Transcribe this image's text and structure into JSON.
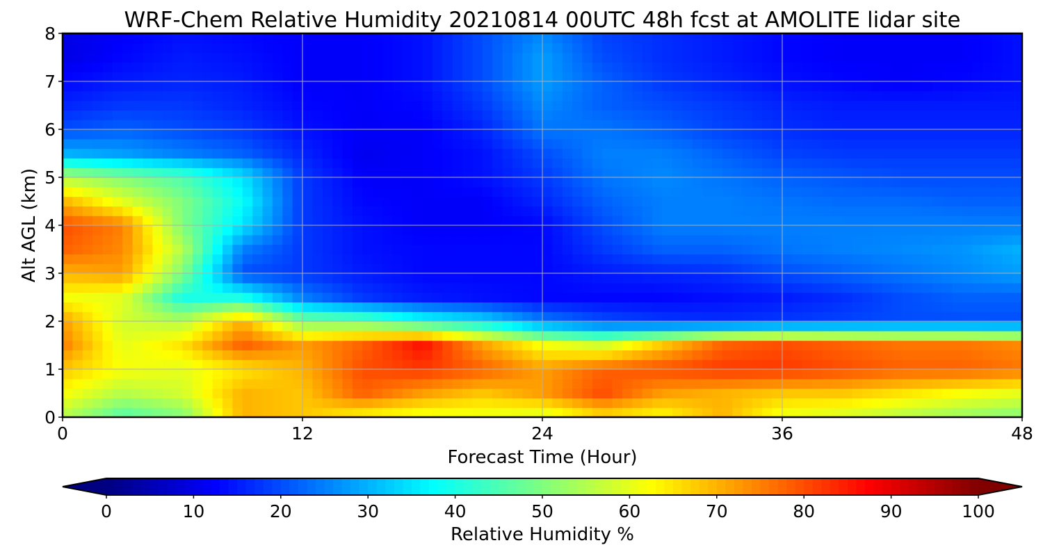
{
  "chart_data": {
    "type": "heatmap",
    "title": "WRF-Chem Relative Humidity 20210814 00UTC 48h fcst at AMOLITE lidar site",
    "xlabel": "Forecast Time (Hour)",
    "ylabel": "Alt AGL (km)",
    "xlim": [
      0,
      48
    ],
    "ylim": [
      0,
      8
    ],
    "x_ticks": [
      0,
      12,
      24,
      36,
      48
    ],
    "y_ticks": [
      0,
      1,
      2,
      3,
      4,
      5,
      6,
      7,
      8
    ],
    "grid": true,
    "x": [
      0,
      3,
      6,
      9,
      12,
      15,
      18,
      21,
      24,
      27,
      30,
      33,
      36,
      39,
      42,
      45,
      48
    ],
    "y": [
      0,
      0.5,
      1,
      1.5,
      2,
      2.5,
      3,
      3.5,
      4,
      4.5,
      5,
      5.5,
      6,
      6.5,
      7,
      7.5,
      8
    ],
    "z": [
      [
        55,
        45,
        50,
        70,
        68,
        62,
        60,
        60,
        58,
        65,
        62,
        70,
        60,
        58,
        55,
        52,
        50
      ],
      [
        62,
        55,
        58,
        70,
        68,
        78,
        72,
        68,
        72,
        80,
        72,
        70,
        68,
        68,
        65,
        62,
        60
      ],
      [
        68,
        62,
        60,
        65,
        70,
        80,
        82,
        78,
        72,
        78,
        80,
        82,
        82,
        80,
        78,
        78,
        76
      ],
      [
        75,
        60,
        65,
        78,
        72,
        78,
        86,
        72,
        62,
        58,
        68,
        78,
        80,
        78,
        76,
        76,
        74
      ],
      [
        72,
        58,
        55,
        70,
        50,
        48,
        40,
        35,
        25,
        20,
        18,
        17,
        18,
        19,
        20,
        20,
        20
      ],
      [
        62,
        60,
        40,
        40,
        25,
        18,
        15,
        14,
        13,
        13,
        13,
        14,
        15,
        17,
        20,
        22,
        22
      ],
      [
        70,
        72,
        50,
        20,
        18,
        15,
        13,
        13,
        13,
        15,
        16,
        17,
        20,
        22,
        24,
        26,
        28
      ],
      [
        78,
        74,
        55,
        25,
        18,
        14,
        13,
        13,
        13,
        18,
        22,
        22,
        24,
        25,
        26,
        27,
        30
      ],
      [
        80,
        75,
        50,
        35,
        18,
        14,
        12,
        12,
        13,
        20,
        25,
        25,
        25,
        25,
        25,
        25,
        25
      ],
      [
        70,
        60,
        50,
        38,
        18,
        13,
        12,
        12,
        16,
        22,
        25,
        25,
        24,
        23,
        23,
        22,
        22
      ],
      [
        55,
        50,
        45,
        35,
        18,
        12,
        12,
        14,
        18,
        24,
        26,
        24,
        22,
        21,
        20,
        20,
        20
      ],
      [
        30,
        28,
        25,
        22,
        16,
        11,
        12,
        14,
        20,
        25,
        25,
        22,
        19,
        18,
        18,
        18,
        18
      ],
      [
        20,
        22,
        20,
        18,
        14,
        12,
        12,
        16,
        24,
        24,
        22,
        19,
        17,
        16,
        16,
        16,
        16
      ],
      [
        16,
        18,
        18,
        16,
        13,
        12,
        13,
        18,
        26,
        22,
        20,
        18,
        16,
        15,
        15,
        15,
        15
      ],
      [
        13,
        15,
        16,
        15,
        12,
        12,
        14,
        20,
        28,
        22,
        18,
        16,
        14,
        13,
        12,
        13,
        14
      ],
      [
        10,
        13,
        15,
        14,
        12,
        12,
        14,
        20,
        28,
        20,
        17,
        15,
        13,
        12,
        12,
        12,
        14
      ],
      [
        10,
        12,
        14,
        13,
        12,
        12,
        14,
        20,
        26,
        19,
        17,
        15,
        13,
        12,
        12,
        12,
        14
      ]
    ],
    "colorbar": {
      "label": "Relative Humidity %",
      "min": 0,
      "max": 100,
      "ticks": [
        0,
        10,
        20,
        30,
        40,
        50,
        60,
        70,
        80,
        90,
        100
      ],
      "extend": "both",
      "colormap": "jet"
    }
  }
}
